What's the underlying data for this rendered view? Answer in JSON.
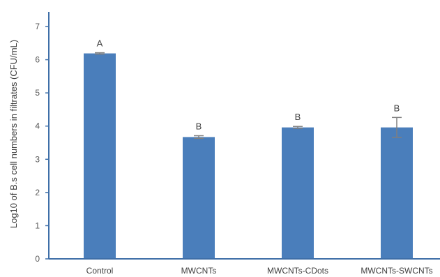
{
  "chart_data": {
    "type": "bar",
    "title": "",
    "xlabel": "",
    "ylabel": "Log10 of B.s cell numbers in filtrates (CFU/mL)",
    "categories": [
      "Control",
      "MWCNTs",
      "MWCNTs-CDots",
      "MWCNTs-SWCNTs"
    ],
    "values": [
      6.19,
      3.67,
      3.96,
      3.96
    ],
    "errors": [
      0.02,
      0.04,
      0.03,
      0.3
    ],
    "annotations": [
      "A",
      "B",
      "B",
      "B"
    ],
    "ylim": [
      0,
      7
    ],
    "yticks": [
      "0",
      "1",
      "2",
      "3",
      "4",
      "5",
      "6",
      "7"
    ],
    "grid": false,
    "legend": "none",
    "bar_color": "#4a7ebb",
    "error_color": "#7f7f7f",
    "axis_color": "#3f6fa8"
  }
}
